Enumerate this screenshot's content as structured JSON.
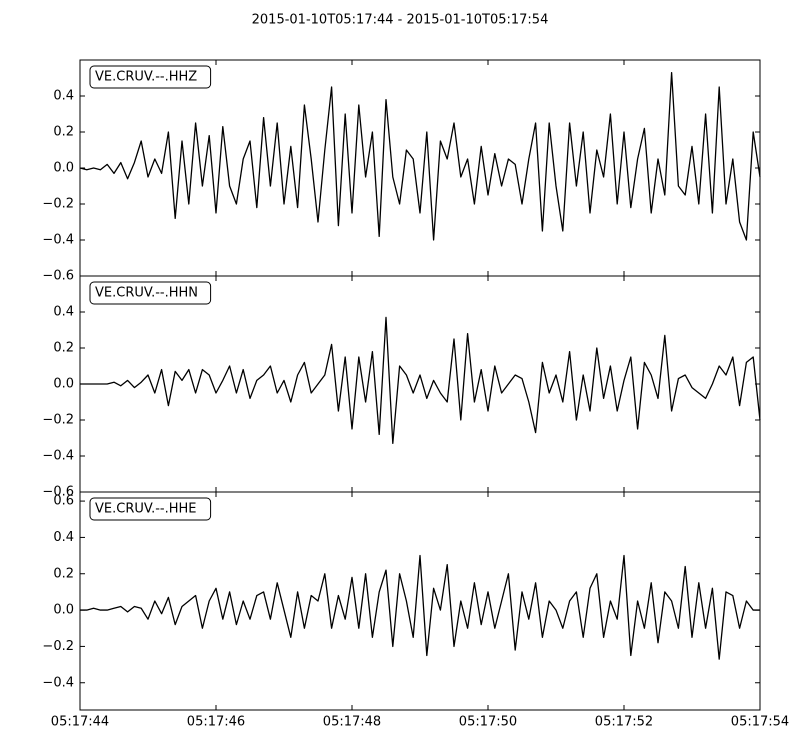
{
  "chart_data": [
    {
      "type": "line",
      "title": "2015-01-10T05:17:44  -  2015-01-10T05:17:54",
      "x": [
        0,
        0.1,
        0.2,
        0.3,
        0.4,
        0.5,
        0.6,
        0.7,
        0.8,
        0.9,
        1,
        1.1,
        1.2,
        1.3,
        1.4,
        1.5,
        1.6,
        1.7,
        1.8,
        1.9,
        2,
        2.1,
        2.2,
        2.3,
        2.4,
        2.5,
        2.6,
        2.7,
        2.8,
        2.9,
        3,
        3.1,
        3.2,
        3.3,
        3.4,
        3.5,
        3.6,
        3.7,
        3.8,
        3.9,
        4,
        4.1,
        4.2,
        4.3,
        4.4,
        4.5,
        4.6,
        4.7,
        4.8,
        4.9,
        5,
        5.1,
        5.2,
        5.3,
        5.4,
        5.5,
        5.6,
        5.7,
        5.8,
        5.9,
        6,
        6.1,
        6.2,
        6.3,
        6.4,
        6.5,
        6.6,
        6.7,
        6.8,
        6.9,
        7,
        7.1,
        7.2,
        7.3,
        7.4,
        7.5,
        7.6,
        7.7,
        7.8,
        7.9,
        8,
        8.1,
        8.2,
        8.3,
        8.4,
        8.5,
        8.6,
        8.7,
        8.8,
        8.9,
        9,
        9.1,
        9.2,
        9.3,
        9.4,
        9.5,
        9.6,
        9.7,
        9.8,
        9.9,
        10
      ],
      "series": [
        {
          "name": "VE.CRUV.--.HHZ",
          "color": "#000000",
          "values": [
            0,
            -0.01,
            0,
            -0.01,
            0.02,
            -0.03,
            0.03,
            -0.06,
            0.03,
            0.15,
            -0.05,
            0.05,
            -0.03,
            0.2,
            -0.28,
            0.15,
            -0.2,
            0.25,
            -0.1,
            0.18,
            -0.25,
            0.23,
            -0.1,
            -0.2,
            0.05,
            0.15,
            -0.22,
            0.28,
            -0.1,
            0.25,
            -0.2,
            0.12,
            -0.22,
            0.35,
            0.05,
            -0.3,
            0.1,
            0.45,
            -0.32,
            0.3,
            -0.25,
            0.35,
            -0.05,
            0.2,
            -0.38,
            0.38,
            -0.05,
            -0.2,
            0.1,
            0.05,
            -0.25,
            0.2,
            -0.4,
            0.15,
            0.05,
            0.25,
            -0.05,
            0.05,
            -0.2,
            0.12,
            -0.15,
            0.08,
            -0.1,
            0.05,
            0.02,
            -0.2,
            0.05,
            0.25,
            -0.35,
            0.25,
            -0.1,
            -0.35,
            0.25,
            -0.1,
            0.2,
            -0.25,
            0.1,
            -0.05,
            0.3,
            -0.2,
            0.2,
            -0.22,
            0.05,
            0.22,
            -0.25,
            0.05,
            -0.15,
            0.53,
            -0.1,
            -0.15,
            0.12,
            -0.2,
            0.3,
            -0.25,
            0.45,
            -0.2,
            0.05,
            -0.3,
            -0.4,
            0.2,
            -0.05
          ]
        }
      ],
      "xlim": [
        0,
        10
      ],
      "ylim": [
        -0.6,
        0.6
      ],
      "yticks": [
        {
          "value": -0.6,
          "label": "−0.6"
        },
        {
          "value": -0.4,
          "label": "−0.4"
        },
        {
          "value": -0.2,
          "label": "−0.2"
        },
        {
          "value": 0,
          "label": "0.0"
        },
        0.2,
        0.4
      ]
    },
    {
      "type": "line",
      "x": [
        0,
        0.1,
        0.2,
        0.3,
        0.4,
        0.5,
        0.6,
        0.7,
        0.8,
        0.9,
        1,
        1.1,
        1.2,
        1.3,
        1.4,
        1.5,
        1.6,
        1.7,
        1.8,
        1.9,
        2,
        2.1,
        2.2,
        2.3,
        2.4,
        2.5,
        2.6,
        2.7,
        2.8,
        2.9,
        3,
        3.1,
        3.2,
        3.3,
        3.4,
        3.5,
        3.6,
        3.7,
        3.8,
        3.9,
        4,
        4.1,
        4.2,
        4.3,
        4.4,
        4.5,
        4.6,
        4.7,
        4.8,
        4.9,
        5,
        5.1,
        5.2,
        5.3,
        5.4,
        5.5,
        5.6,
        5.7,
        5.8,
        5.9,
        6,
        6.1,
        6.2,
        6.3,
        6.4,
        6.5,
        6.6,
        6.7,
        6.8,
        6.9,
        7,
        7.1,
        7.2,
        7.3,
        7.4,
        7.5,
        7.6,
        7.7,
        7.8,
        7.9,
        8,
        8.1,
        8.2,
        8.3,
        8.4,
        8.5,
        8.6,
        8.7,
        8.8,
        8.9,
        9,
        9.1,
        9.2,
        9.3,
        9.4,
        9.5,
        9.6,
        9.7,
        9.8,
        9.9,
        10
      ],
      "series": [
        {
          "name": "VE.CRUV.--.HHN",
          "color": "#000000",
          "values": [
            0,
            0,
            0,
            0,
            0,
            0.01,
            -0.01,
            0.02,
            -0.02,
            0.01,
            0.05,
            -0.05,
            0.08,
            -0.12,
            0.07,
            0.02,
            0.08,
            -0.05,
            0.08,
            0.05,
            -0.05,
            0.02,
            0.1,
            -0.05,
            0.08,
            -0.08,
            0.02,
            0.05,
            0.1,
            -0.05,
            0.02,
            -0.1,
            0.05,
            0.12,
            -0.05,
            0,
            0.05,
            0.22,
            -0.15,
            0.15,
            -0.25,
            0.15,
            -0.1,
            0.18,
            -0.28,
            0.37,
            -0.33,
            0.1,
            0.05,
            -0.05,
            0.05,
            -0.08,
            0.02,
            -0.05,
            -0.1,
            0.25,
            -0.2,
            0.28,
            -0.1,
            0.08,
            -0.15,
            0.1,
            -0.05,
            0,
            0.05,
            0.03,
            -0.1,
            -0.27,
            0.12,
            -0.05,
            0.05,
            -0.1,
            0.18,
            -0.2,
            0.05,
            -0.15,
            0.2,
            -0.08,
            0.1,
            -0.15,
            0.02,
            0.15,
            -0.25,
            0.12,
            0.05,
            -0.08,
            0.27,
            -0.15,
            0.03,
            0.05,
            -0.02,
            -0.05,
            -0.08,
            0,
            0.1,
            0.05,
            0.15,
            -0.12,
            0.12,
            0.15,
            -0.2
          ]
        }
      ],
      "xlim": [
        0,
        10
      ],
      "ylim": [
        -0.6,
        0.6
      ],
      "yticks": [
        {
          "value": -0.6,
          "label": "−0.6"
        },
        {
          "value": -0.4,
          "label": "−0.4"
        },
        {
          "value": -0.2,
          "label": "−0.2"
        },
        {
          "value": 0,
          "label": "0.0"
        },
        0.2,
        0.4
      ]
    },
    {
      "type": "line",
      "x": [
        0,
        0.1,
        0.2,
        0.3,
        0.4,
        0.5,
        0.6,
        0.7,
        0.8,
        0.9,
        1,
        1.1,
        1.2,
        1.3,
        1.4,
        1.5,
        1.6,
        1.7,
        1.8,
        1.9,
        2,
        2.1,
        2.2,
        2.3,
        2.4,
        2.5,
        2.6,
        2.7,
        2.8,
        2.9,
        3,
        3.1,
        3.2,
        3.3,
        3.4,
        3.5,
        3.6,
        3.7,
        3.8,
        3.9,
        4,
        4.1,
        4.2,
        4.3,
        4.4,
        4.5,
        4.6,
        4.7,
        4.8,
        4.9,
        5,
        5.1,
        5.2,
        5.3,
        5.4,
        5.5,
        5.6,
        5.7,
        5.8,
        5.9,
        6,
        6.1,
        6.2,
        6.3,
        6.4,
        6.5,
        6.6,
        6.7,
        6.8,
        6.9,
        7,
        7.1,
        7.2,
        7.3,
        7.4,
        7.5,
        7.6,
        7.7,
        7.8,
        7.9,
        8,
        8.1,
        8.2,
        8.3,
        8.4,
        8.5,
        8.6,
        8.7,
        8.8,
        8.9,
        9,
        9.1,
        9.2,
        9.3,
        9.4,
        9.5,
        9.6,
        9.7,
        9.8,
        9.9,
        10
      ],
      "series": [
        {
          "name": "VE.CRUV.--.HHE",
          "color": "#000000",
          "values": [
            0,
            0,
            0.01,
            0,
            0,
            0.01,
            0.02,
            -0.01,
            0.02,
            0.01,
            -0.05,
            0.05,
            -0.02,
            0.07,
            -0.08,
            0.02,
            0.05,
            0.08,
            -0.1,
            0.05,
            0.12,
            -0.05,
            0.1,
            -0.08,
            0.05,
            -0.05,
            0.08,
            0.1,
            -0.05,
            0.15,
            0,
            -0.15,
            0.1,
            -0.1,
            0.08,
            0.05,
            0.2,
            -0.1,
            0.08,
            -0.05,
            0.18,
            -0.1,
            0.2,
            -0.15,
            0.1,
            0.22,
            -0.2,
            0.2,
            0.05,
            -0.15,
            0.3,
            -0.25,
            0.12,
            0,
            0.25,
            -0.2,
            0.05,
            -0.1,
            0.15,
            -0.08,
            0.1,
            -0.1,
            0.05,
            0.2,
            -0.22,
            0.1,
            -0.05,
            0.15,
            -0.15,
            0.05,
            0,
            -0.1,
            0.05,
            0.1,
            -0.15,
            0.12,
            0.2,
            -0.15,
            0.05,
            -0.05,
            0.3,
            -0.25,
            0.05,
            -0.1,
            0.15,
            -0.18,
            0.1,
            0.05,
            -0.1,
            0.24,
            -0.15,
            0.15,
            -0.1,
            0.12,
            -0.27,
            0.1,
            0.08,
            -0.1,
            0.05,
            0,
            0
          ]
        }
      ],
      "xlim": [
        0,
        10
      ],
      "ylim": [
        -0.55,
        0.65
      ],
      "yticks": [
        {
          "value": -0.4,
          "label": "−0.4"
        },
        {
          "value": -0.2,
          "label": "−0.2"
        },
        {
          "value": 0,
          "label": "0.0"
        },
        0.2,
        0.4,
        0.6
      ],
      "xticks": [
        {
          "value": 0,
          "label": "05:17:44"
        },
        {
          "value": 2,
          "label": "05:17:46"
        },
        {
          "value": 4,
          "label": "05:17:48"
        },
        {
          "value": 6,
          "label": "05:17:50"
        },
        {
          "value": 8,
          "label": "05:17:52"
        },
        {
          "value": 10,
          "label": "05:17:54"
        }
      ]
    }
  ]
}
